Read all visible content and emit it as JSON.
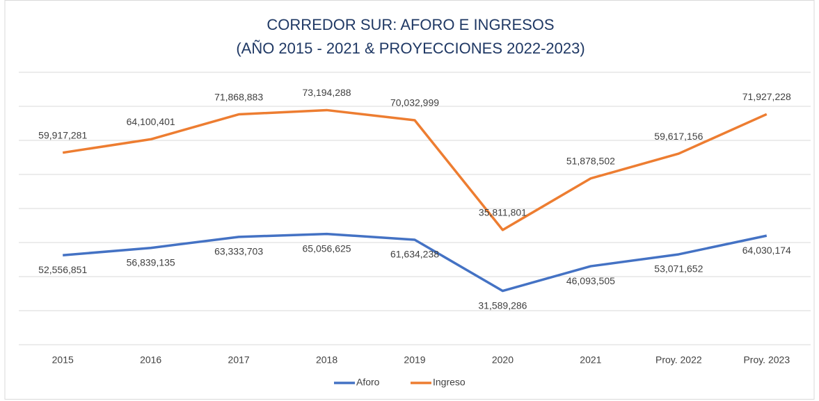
{
  "chart_data": {
    "type": "line",
    "title": "CORREDOR SUR: AFORO E INGRESOS",
    "subtitle": "(AÑO 2015 - 2021 & PROYECCIONES 2022-2023)",
    "categories": [
      "2015",
      "2016",
      "2017",
      "2018",
      "2019",
      "2020",
      "2021",
      "Proy. 2022",
      "Proy. 2023"
    ],
    "series": [
      {
        "name": "Aforo",
        "color": "#4472c4",
        "axis": "y2",
        "values": [
          52556851,
          56839135,
          63333703,
          65056625,
          61634238,
          31589286,
          46093505,
          53071652,
          64030174
        ],
        "value_labels": [
          "52,556,851",
          "56,839,135",
          "63,333,703",
          "65,056,625",
          "61,634,238",
          "31,589,286",
          "46,093,505",
          "53,071,652",
          "64,030,174"
        ]
      },
      {
        "name": "Ingreso",
        "color": "#ed7d31",
        "values": [
          59917281,
          64100401,
          71868883,
          73194288,
          70032999,
          35811801,
          51878502,
          59617156,
          71927228
        ],
        "value_labels": [
          "59,917,281",
          "64,100,401",
          "71,868,883",
          "73,194,288",
          "70,032,999",
          "35,811,801",
          "51,878,502",
          "59,617,156",
          "71,927,228"
        ]
      }
    ],
    "ylim": [
      0,
      85000000
    ],
    "y2lim": [
      0,
      160000000
    ],
    "y2ticks": [
      0,
      20000000,
      40000000,
      60000000,
      80000000,
      100000000,
      120000000,
      140000000,
      160000000
    ],
    "grid": true,
    "legend": "bottom"
  }
}
